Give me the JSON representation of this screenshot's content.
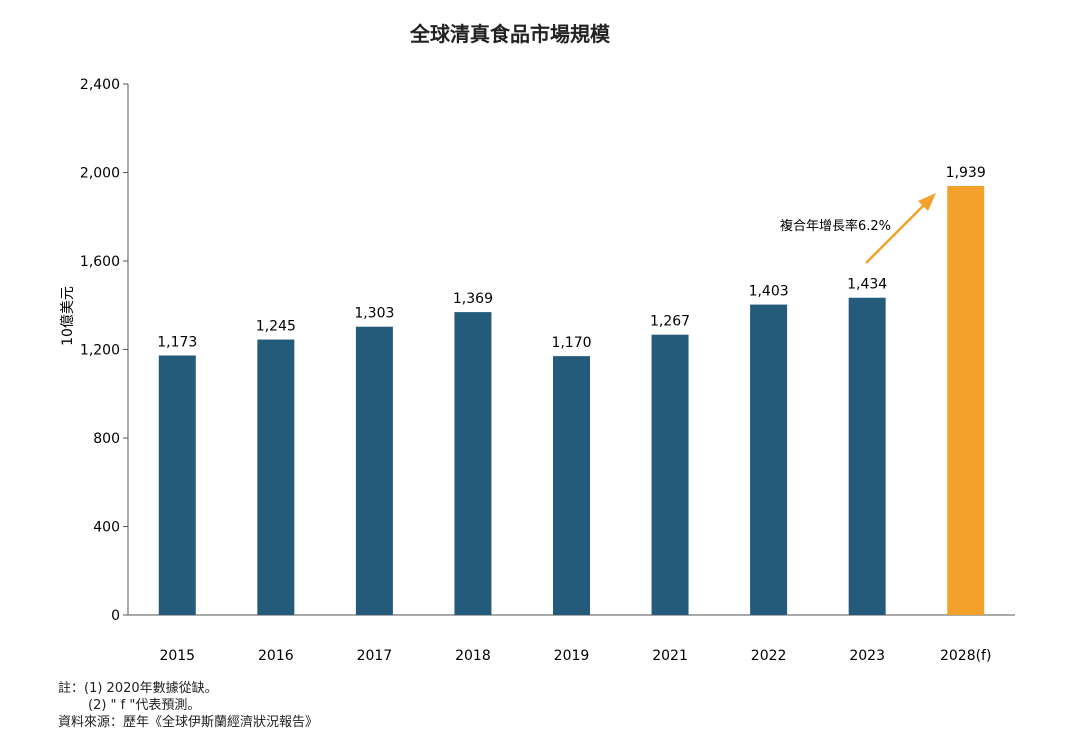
{
  "chart_data": {
    "type": "bar",
    "title": "全球清真食品市場規模",
    "ylabel": "10億美元",
    "xlabel": "",
    "categories": [
      "2015",
      "2016",
      "2017",
      "2018",
      "2019",
      "2021",
      "2022",
      "2023",
      "2028(f)"
    ],
    "values": [
      1173,
      1245,
      1303,
      1369,
      1170,
      1267,
      1403,
      1434,
      1939
    ],
    "data_labels": [
      "1,173",
      "1,245",
      "1,303",
      "1,369",
      "1,170",
      "1,267",
      "1,403",
      "1,434",
      "1,939"
    ],
    "ylim": [
      0,
      2400
    ],
    "yticks": [
      0,
      400,
      800,
      1200,
      1600,
      2000,
      2400
    ],
    "ytick_labels": [
      "0",
      "400",
      "800",
      "1,200",
      "1,600",
      "2,000",
      "2,400"
    ],
    "grid": false,
    "colors": {
      "actual": "#245a7a",
      "forecast": "#f4a12c"
    },
    "annotation": "複合年增長率6.2%"
  },
  "notes": [
    "註：(1) 2020年數據從缺。",
    "(2) \" f \"代表預測。",
    "資料來源：歷年《全球伊斯蘭經濟狀況報告》"
  ]
}
